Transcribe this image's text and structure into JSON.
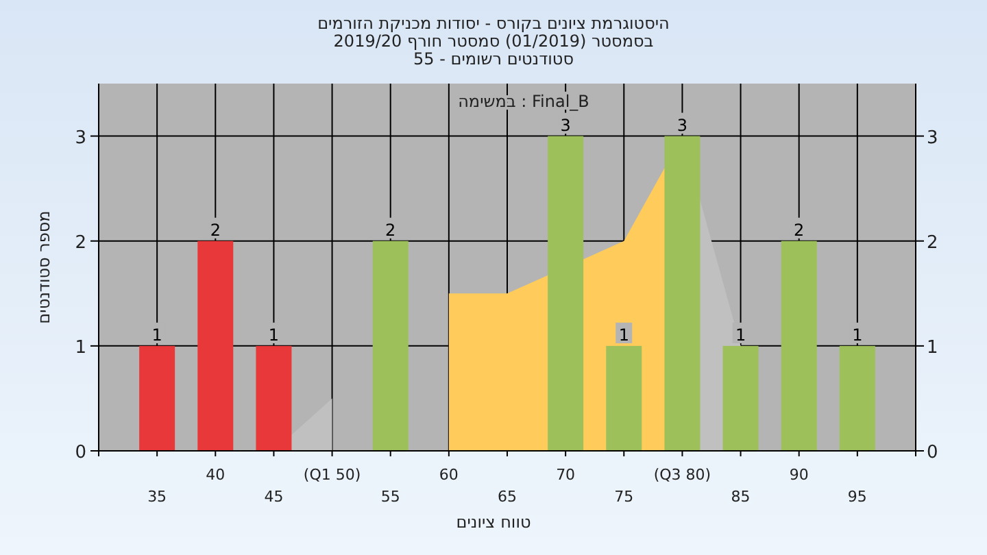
{
  "chart_data": {
    "type": "bar",
    "title": "היסטוגרמת ציונים בקורס - יסודות מכניקת הזורמים",
    "subtitle": "בסמסטר  (01/2019)  סמסטר חורף 2019/20\nסטודנטים רשומים - 55",
    "xlabel": "טווח ציונים",
    "ylabel": "מספר סטודנטים",
    "annotations": [
      "במשימה : Final_B"
    ],
    "categories": [
      "35",
      "40",
      "45",
      "(Q1 50)",
      "55",
      "60",
      "65",
      "70",
      "75",
      "(Q3 80)",
      "85",
      "90",
      "95"
    ],
    "ylim": [
      0,
      3.5
    ],
    "yticks": [
      0,
      1,
      2,
      3
    ],
    "y2lim": [
      0,
      3.5
    ],
    "y2ticks": [
      0,
      1,
      2,
      3
    ],
    "grid": true,
    "series": [
      {
        "type": "area",
        "color": "#c0c0c0",
        "values": [
          null,
          null,
          0,
          0.5,
          null,
          null,
          null,
          null,
          null,
          null,
          null,
          null,
          null
        ]
      },
      {
        "type": "area",
        "color": "#c0c0c0",
        "values": [
          null,
          null,
          null,
          null,
          null,
          null,
          null,
          null,
          null,
          3,
          1,
          null,
          null
        ]
      },
      {
        "type": "area",
        "color": "#ffcb5a",
        "values": [
          null,
          null,
          null,
          null,
          null,
          1.5,
          1.5,
          null,
          2,
          3,
          null,
          null,
          null
        ]
      },
      {
        "colors": [
          "#e8383a",
          "#e8383a",
          "#e8383a",
          "#e8383a",
          "#9dc05a",
          "#9dc05a",
          "#9dc05a",
          "#9dc05a",
          "#9dc05a",
          "#9dc05a",
          "#9dc05a",
          "#9dc05a",
          "#9dc05a"
        ],
        "values": [
          1,
          2,
          1,
          0,
          2,
          0,
          0,
          3,
          1,
          3,
          1,
          2,
          1
        ],
        "value_labels": [
          "1",
          "2",
          "1",
          null,
          "2",
          null,
          null,
          "3",
          "1",
          "3",
          "1",
          "2",
          "1"
        ]
      }
    ]
  }
}
